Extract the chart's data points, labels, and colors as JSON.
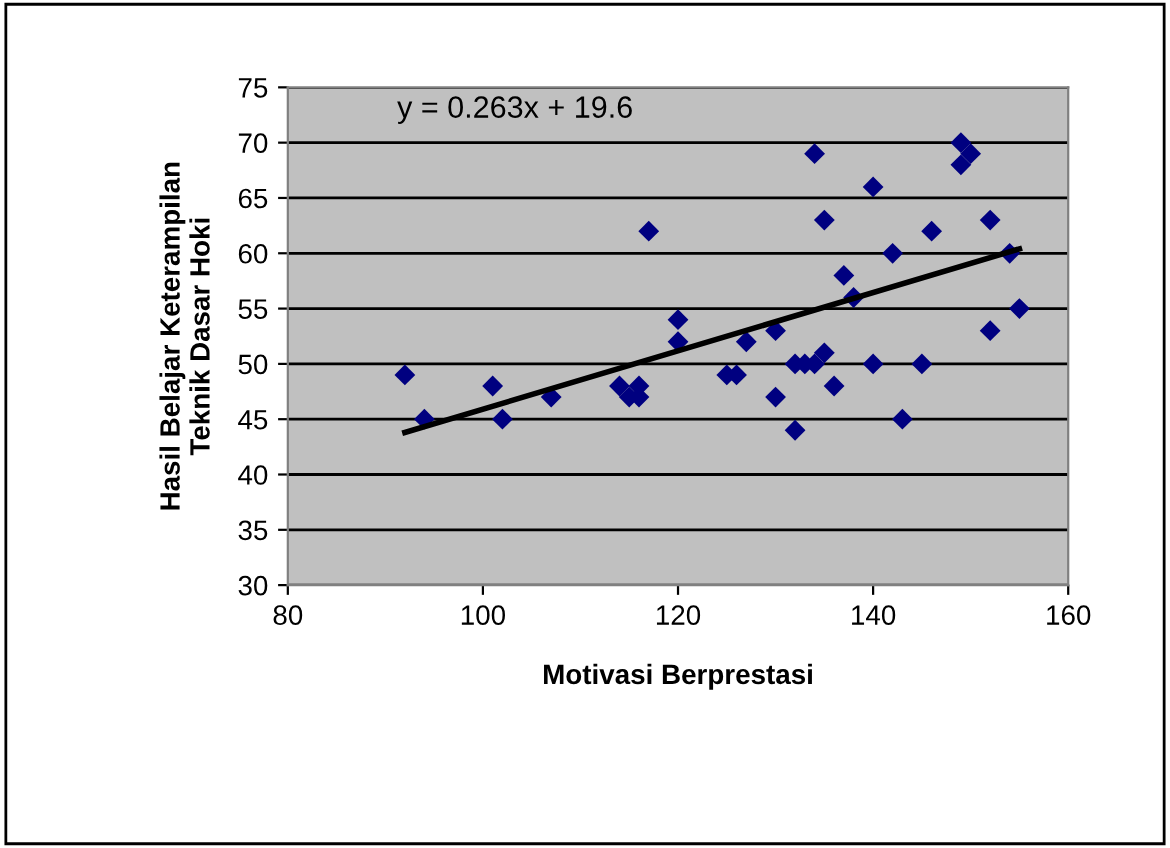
{
  "chart_data": {
    "type": "scatter",
    "xlabel": "Motivasi Berprestasi",
    "ylabel": "Hasil Belajar Keterampilan\nTeknik Dasar Hoki",
    "xlim": [
      80,
      160
    ],
    "xticks": [
      80,
      100,
      120,
      140,
      160
    ],
    "ylim": [
      30,
      75
    ],
    "yticks": [
      30,
      35,
      40,
      45,
      50,
      55,
      60,
      65,
      70,
      75
    ],
    "grid": "y",
    "marker": "diamond",
    "annotations": [
      "y = 0.263x + 19.6"
    ],
    "series": [
      {
        "color": "#000080",
        "x": [
          92,
          94,
          101,
          102,
          107,
          114,
          115,
          116,
          116,
          117,
          120,
          120,
          125,
          126,
          127,
          130,
          130,
          132,
          132,
          133,
          134,
          134,
          135,
          135,
          136,
          137,
          138,
          140,
          140,
          142,
          143,
          145,
          146,
          149,
          149,
          150,
          152,
          152,
          154,
          155
        ],
        "values": [
          49,
          45,
          48,
          45,
          47,
          48,
          47,
          47,
          48,
          62,
          54,
          52,
          49,
          49,
          52,
          53,
          47,
          44,
          50,
          50,
          50,
          69,
          51,
          63,
          48,
          58,
          56,
          66,
          50,
          60,
          45,
          50,
          62,
          70,
          68,
          69,
          63,
          53,
          60,
          55
        ]
      },
      {
        "type": "line",
        "color": "#000000",
        "x": [
          92,
          155
        ],
        "values": [
          43.8,
          60.4
        ],
        "marker": "none"
      }
    ]
  }
}
